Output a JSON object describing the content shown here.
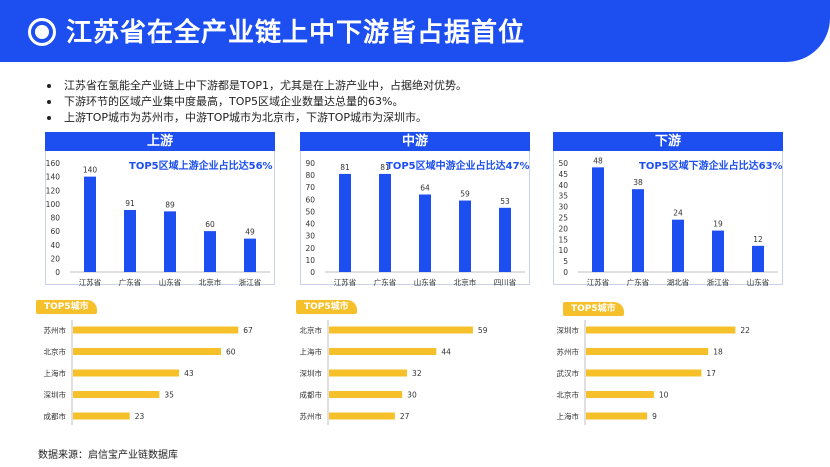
{
  "header": {
    "title": "江苏省在全产业链上中下游皆占据首位"
  },
  "bullets": [
    "江苏省在氢能全产业链上中下游都是TOP1，尤其是在上游产业中，占据绝对优势。",
    "下游环节的区域产业集中度最高，TOP5区域企业数量达总量的63%。",
    "上游TOP城市为苏州市，中游TOP城市为北京市，下游TOP城市为深圳市。"
  ],
  "tag_label": "TOP5城市",
  "source": "数据来源：启信宝产业链数据库",
  "colors": {
    "blue": "#1d4ff0",
    "yellow": "#f6c02a"
  },
  "chart_data": [
    {
      "type": "bar",
      "panel": "上游",
      "stat": "TOP5区域上游企业占比达56%",
      "categories": [
        "江苏省",
        "广东省",
        "山东省",
        "北京市",
        "浙江省"
      ],
      "values": [
        140,
        91,
        89,
        60,
        49
      ],
      "ylim": [
        0,
        160
      ],
      "yticks": [
        0,
        20,
        40,
        60,
        80,
        100,
        120,
        140,
        160
      ]
    },
    {
      "type": "bar",
      "panel": "中游",
      "stat": "TOP5区域中游企业占比达47%",
      "categories": [
        "江苏省",
        "广东省",
        "山东省",
        "北京市",
        "四川省"
      ],
      "values": [
        81,
        81,
        64,
        59,
        53
      ],
      "ylim": [
        0,
        90
      ],
      "yticks": [
        0,
        10,
        20,
        30,
        40,
        50,
        60,
        70,
        80,
        90
      ]
    },
    {
      "type": "bar",
      "panel": "下游",
      "stat": "TOP5区域下游企业占比达63%",
      "categories": [
        "江苏省",
        "广东省",
        "湖北省",
        "浙江省",
        "山东省"
      ],
      "values": [
        48,
        38,
        24,
        19,
        12
      ],
      "ylim": [
        0,
        50
      ],
      "yticks": [
        0,
        5,
        10,
        15,
        20,
        25,
        30,
        35,
        40,
        45,
        50
      ]
    },
    {
      "type": "bar",
      "orientation": "horizontal",
      "panel": "上游TOP5城市",
      "categories": [
        "苏州市",
        "北京市",
        "上海市",
        "深圳市",
        "成都市"
      ],
      "values": [
        67,
        60,
        43,
        35,
        23
      ],
      "xlim": [
        0,
        75
      ]
    },
    {
      "type": "bar",
      "orientation": "horizontal",
      "panel": "中游TOP5城市",
      "categories": [
        "北京市",
        "上海市",
        "深圳市",
        "成都市",
        "苏州市"
      ],
      "values": [
        59,
        44,
        32,
        30,
        27
      ],
      "xlim": [
        0,
        66
      ]
    },
    {
      "type": "bar",
      "orientation": "horizontal",
      "panel": "下游TOP5城市",
      "categories": [
        "深圳市",
        "苏州市",
        "武汉市",
        "北京市",
        "上海市"
      ],
      "values": [
        22,
        18,
        17,
        10,
        9
      ],
      "xlim": [
        0,
        24.6
      ]
    }
  ]
}
